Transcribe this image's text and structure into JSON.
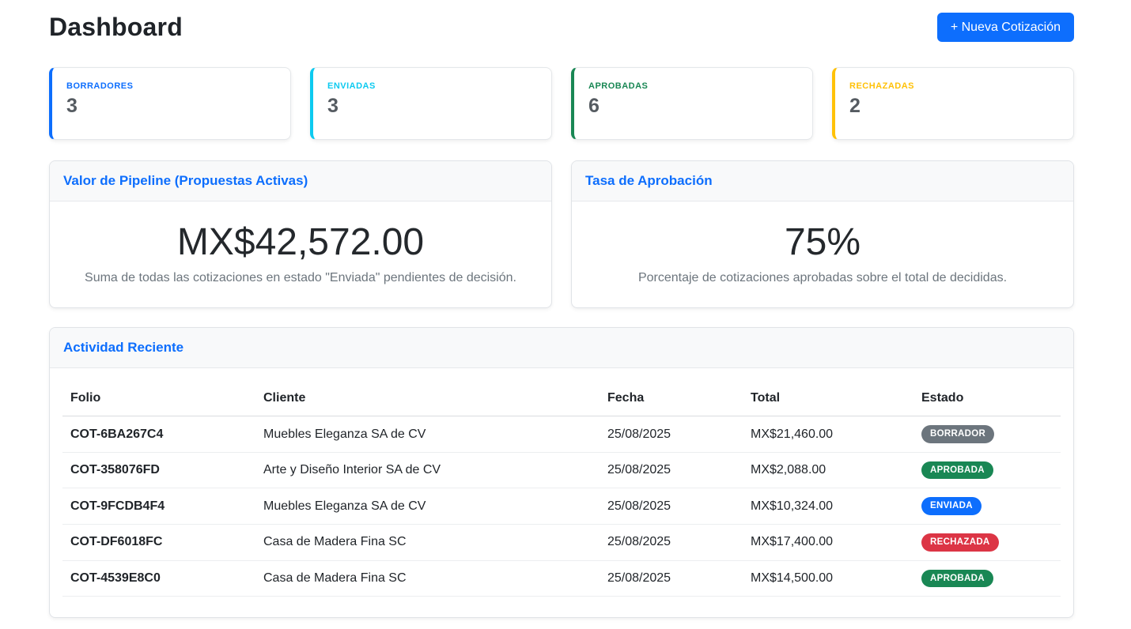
{
  "header": {
    "title": "Dashboard",
    "new_quote_button": "+ Nueva Cotización"
  },
  "stats": [
    {
      "label": "BORRADORES",
      "value": "3",
      "color": "#0d6efd"
    },
    {
      "label": "ENVIADAS",
      "value": "3",
      "color": "#0dcaf0"
    },
    {
      "label": "APROBADAS",
      "value": "6",
      "color": "#198754"
    },
    {
      "label": "RECHAZADAS",
      "value": "2",
      "color": "#ffc107"
    }
  ],
  "pipeline": {
    "title": "Valor de Pipeline (Propuestas Activas)",
    "value": "MX$42,572.00",
    "description": "Suma de todas las cotizaciones en estado \"Enviada\" pendientes de decisión."
  },
  "approval": {
    "title": "Tasa de Aprobación",
    "value": "75%",
    "description": "Porcentaje de cotizaciones aprobadas sobre el total de decididas."
  },
  "activity": {
    "title": "Actividad Reciente",
    "columns": {
      "folio": "Folio",
      "cliente": "Cliente",
      "fecha": "Fecha",
      "total": "Total",
      "estado": "Estado"
    },
    "rows": [
      {
        "folio": "COT-6BA267C4",
        "cliente": "Muebles Eleganza SA de CV",
        "fecha": "25/08/2025",
        "total": "MX$21,460.00",
        "estado": "BORRADOR"
      },
      {
        "folio": "COT-358076FD",
        "cliente": "Arte y Diseño Interior SA de CV",
        "fecha": "25/08/2025",
        "total": "MX$2,088.00",
        "estado": "APROBADA"
      },
      {
        "folio": "COT-9FCDB4F4",
        "cliente": "Muebles Eleganza SA de CV",
        "fecha": "25/08/2025",
        "total": "MX$10,324.00",
        "estado": "ENVIADA"
      },
      {
        "folio": "COT-DF6018FC",
        "cliente": "Casa de Madera Fina SC",
        "fecha": "25/08/2025",
        "total": "MX$17,400.00",
        "estado": "RECHAZADA"
      },
      {
        "folio": "COT-4539E8C0",
        "cliente": "Casa de Madera Fina SC",
        "fecha": "25/08/2025",
        "total": "MX$14,500.00",
        "estado": "APROBADA"
      }
    ]
  },
  "status_colors": {
    "BORRADOR": "#6c757d",
    "APROBADA": "#198754",
    "ENVIADA": "#0d6efd",
    "RECHAZADA": "#dc3545"
  },
  "theme": {
    "accent": "#0d6efd",
    "header_bg": "#f8f9fa",
    "muted_text": "#6c757d"
  }
}
